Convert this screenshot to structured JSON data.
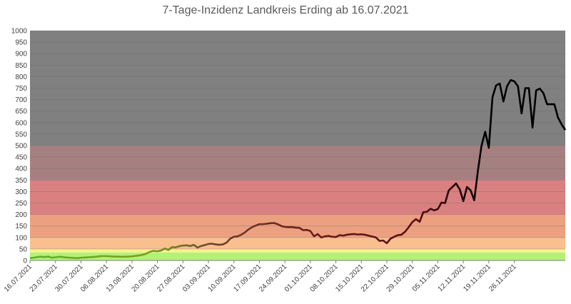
{
  "chart_data": {
    "type": "line",
    "title": "7-Tage-Inzidenz Landkreis Erding ab 16.07.2021",
    "ylim": [
      0,
      1000
    ],
    "ystep": 50,
    "grid": true,
    "x_tick_labels": [
      "16.07.2021",
      "23.07.2021",
      "30.07.2021",
      "06.08.2021",
      "13.08.2021",
      "20.08.2021",
      "27.08.2021",
      "03.09.2021",
      "10.09.2021",
      "17.09.2021",
      "24.09.2021",
      "01.10.2021",
      "08.10.2021",
      "15.10.2021",
      "22.10.2021",
      "29.10.2021",
      "05.11.2021",
      "12.11.2021",
      "19.11.2021",
      "26.11.2021"
    ],
    "bands": [
      {
        "from": 0,
        "to": 35,
        "color": "#b4f07a"
      },
      {
        "from": 35,
        "to": 50,
        "color": "#f7f28c"
      },
      {
        "from": 50,
        "to": 100,
        "color": "#f9bf8e"
      },
      {
        "from": 100,
        "to": 200,
        "color": "#eda080"
      },
      {
        "from": 200,
        "to": 350,
        "color": "#d98080"
      },
      {
        "from": 350,
        "to": 500,
        "color": "#a68080"
      },
      {
        "from": 500,
        "to": 1000,
        "color": "#808080"
      }
    ],
    "series": [
      {
        "start_date": "16.07.2021",
        "values": [
          10,
          12,
          15,
          16,
          15,
          17,
          12,
          14,
          16,
          15,
          13,
          12,
          11,
          10,
          12,
          13,
          14,
          15,
          16,
          18,
          19,
          19,
          18,
          17,
          17,
          16,
          16,
          17,
          18,
          20,
          22,
          25,
          30,
          38,
          42,
          40,
          43,
          52,
          46,
          58,
          57,
          62,
          65,
          66,
          63,
          68,
          56,
          63,
          67,
          72,
          73,
          70,
          68,
          70,
          78,
          95,
          103,
          105,
          112,
          122,
          135,
          145,
          152,
          158,
          158,
          160,
          162,
          163,
          158,
          150,
          146,
          145,
          145,
          143,
          142,
          132,
          133,
          128,
          105,
          115,
          100,
          105,
          107,
          103,
          102,
          110,
          108,
          112,
          114,
          115,
          113,
          114,
          112,
          108,
          104,
          100,
          85,
          87,
          75,
          95,
          103,
          110,
          112,
          125,
          145,
          167,
          180,
          168,
          210,
          212,
          225,
          218,
          224,
          252,
          250,
          305,
          320,
          335,
          310,
          258,
          320,
          305,
          262,
          390,
          500,
          560,
          490,
          710,
          762,
          770,
          692,
          758,
          785,
          780,
          758,
          640,
          750,
          750,
          578,
          740,
          748,
          728,
          680,
          680,
          680,
          622,
          592,
          568
        ],
        "color_stops": [
          {
            "at": 0.0,
            "color": "#5cb030"
          },
          {
            "at": 0.22,
            "color": "#7a9f20"
          },
          {
            "at": 0.34,
            "color": "#6b4530"
          },
          {
            "at": 0.5,
            "color": "#6e1e1e"
          },
          {
            "at": 0.72,
            "color": "#5a0f0f"
          },
          {
            "at": 0.85,
            "color": "#000000"
          },
          {
            "at": 1.0,
            "color": "#000000"
          }
        ]
      }
    ]
  }
}
